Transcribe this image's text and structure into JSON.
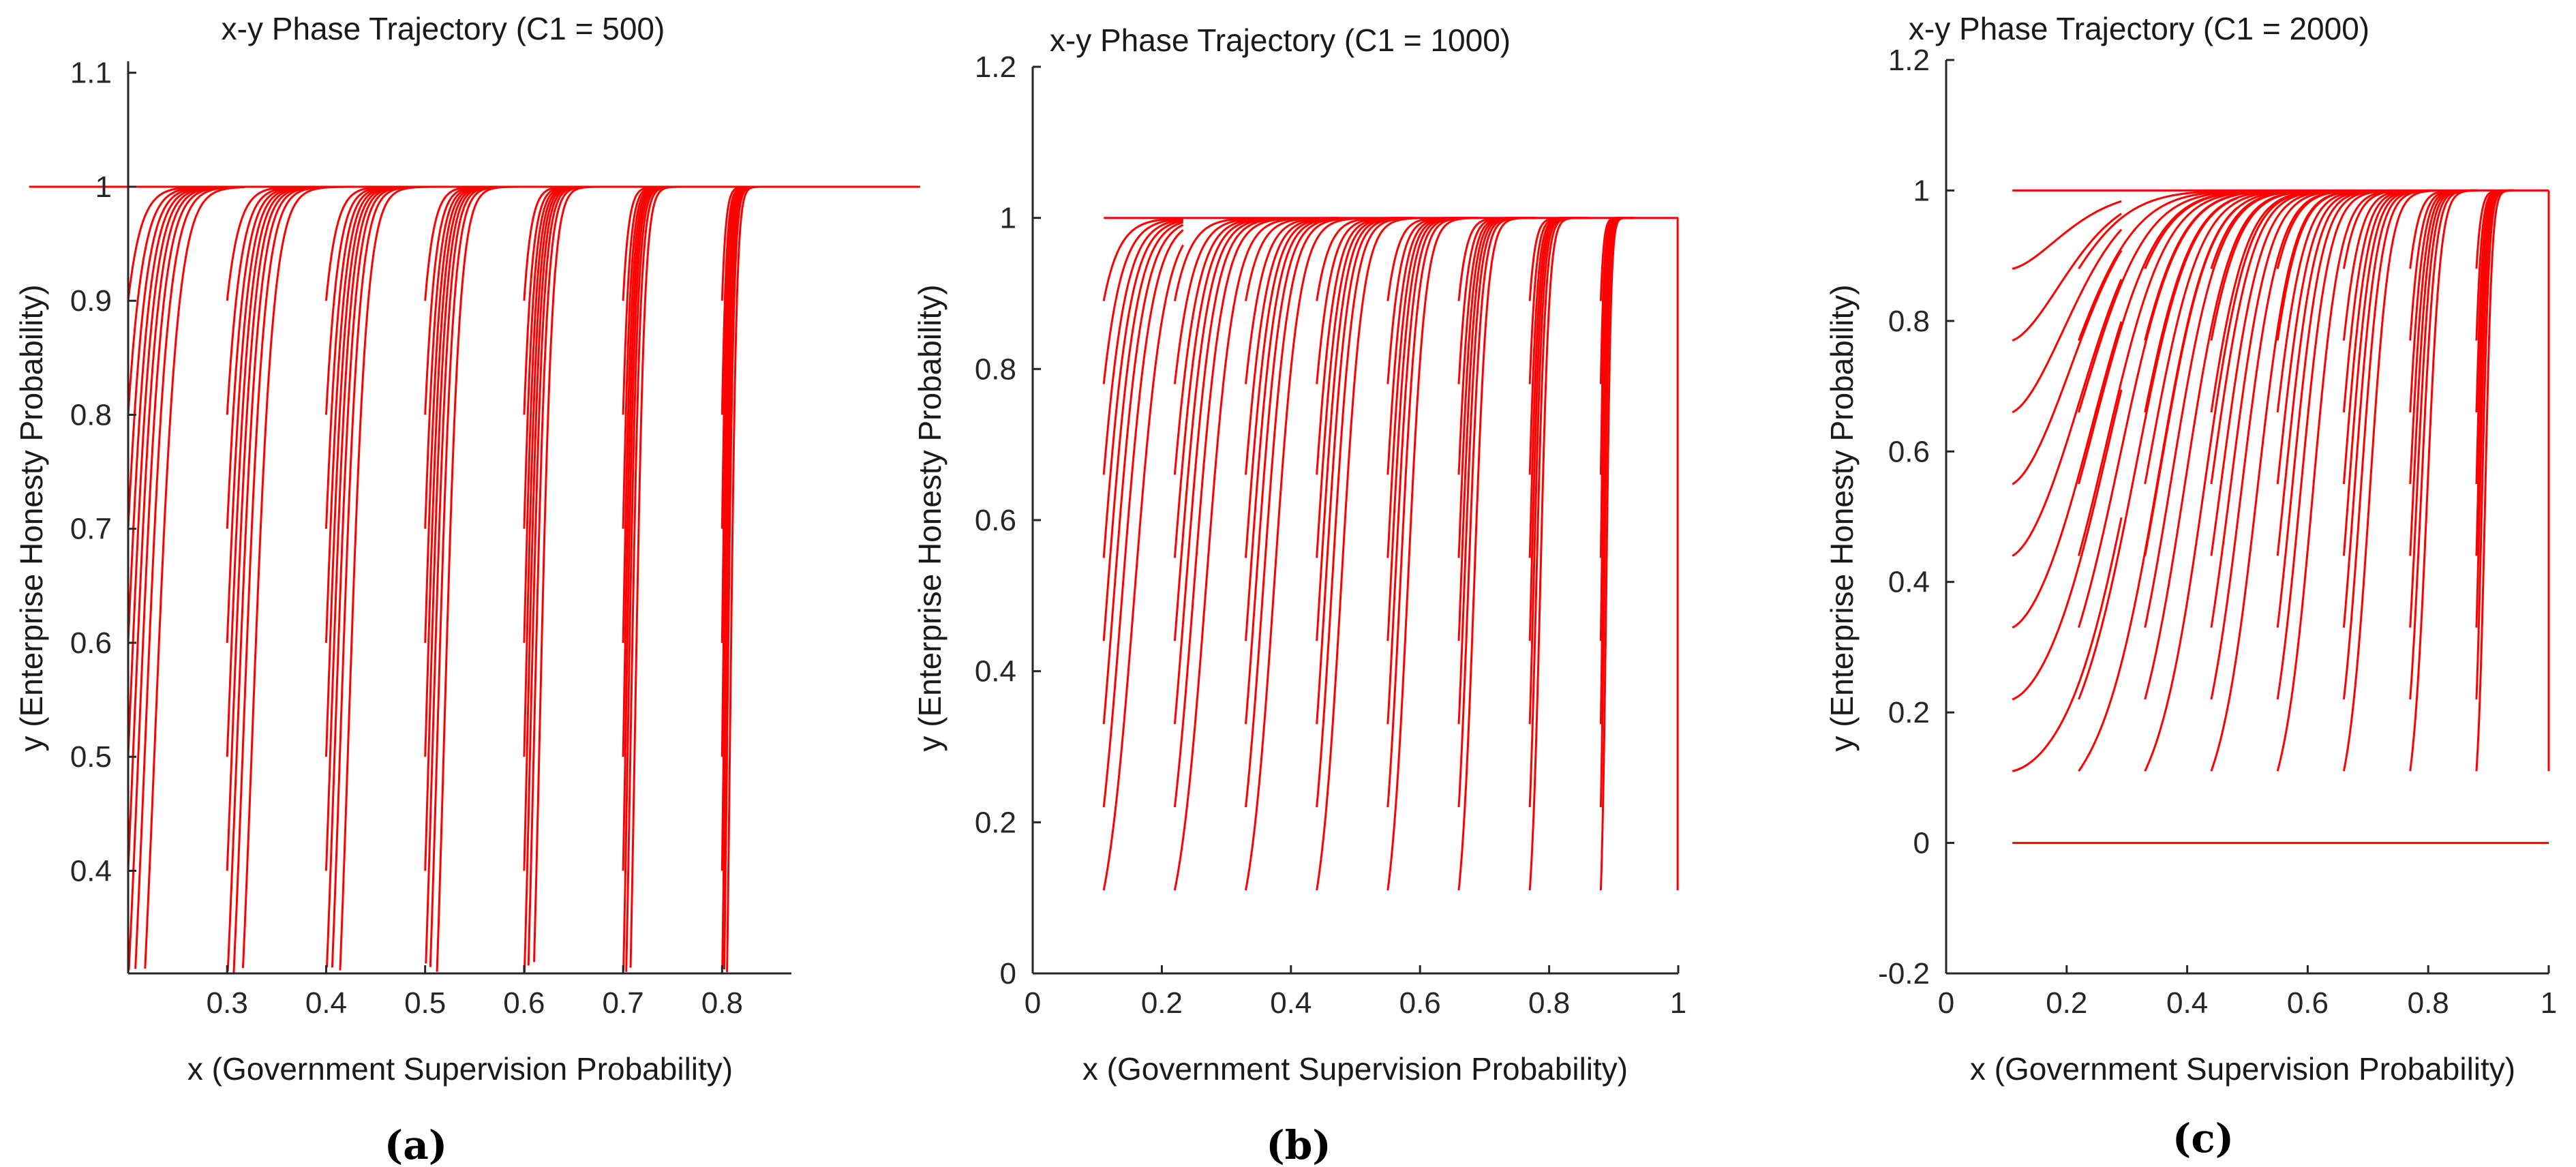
{
  "figure": {
    "panels": [
      {
        "id": "a",
        "caption": "(a)",
        "chart_data": {
          "type": "line",
          "title": "x-y Phase Trajectory (C1 = 500)",
          "xlabel": "x (Government Supervision Probability)",
          "ylabel": "y (Enterprise Honesty Probability)",
          "xlim": [
            0.2,
            0.87
          ],
          "ylim": [
            0.31,
            1.11
          ],
          "xticks": [
            0.3,
            0.4,
            0.5,
            0.6,
            0.7,
            0.8
          ],
          "xticklabels": [
            "0.3",
            "0.4",
            "0.5",
            "0.6",
            "0.7",
            "0.8"
          ],
          "yticks": [
            0.4,
            0.5,
            0.6,
            0.7,
            0.8,
            0.9,
            1.0,
            1.1
          ],
          "yticklabels": [
            "0.4",
            "0.5",
            "0.6",
            "0.7",
            "0.8",
            "0.9",
            "1",
            "1.1"
          ],
          "series_color": "#ff0000",
          "trajectory_family": {
            "x_starts": [
              0.1,
              0.2,
              0.3,
              0.4,
              0.5,
              0.6,
              0.7,
              0.8,
              0.9
            ],
            "y_starts": [
              0.1,
              0.2,
              0.3,
              0.4,
              0.5,
              0.6,
              0.7,
              0.8,
              0.9
            ],
            "k": 3.2,
            "q": 2.5,
            "ystable": 1.0
          }
        }
      },
      {
        "id": "b",
        "caption": "(b)",
        "chart_data": {
          "type": "line",
          "title": "x-y Phase Trajectory (C1 = 1000)",
          "xlabel": "x (Government Supervision Probability)",
          "ylabel": "y (Enterprise Honesty Probability)",
          "xlim": [
            0,
            1
          ],
          "ylim": [
            0,
            1.2
          ],
          "xticks": [
            0,
            0.2,
            0.4,
            0.6,
            0.8,
            1
          ],
          "xticklabels": [
            "0",
            "0.2",
            "0.4",
            "0.6",
            "0.8",
            "1"
          ],
          "yticks": [
            0,
            0.2,
            0.4,
            0.6,
            0.8,
            1.0,
            1.2
          ],
          "yticklabels": [
            "0",
            "0.2",
            "0.4",
            "0.6",
            "0.8",
            "1",
            "1.2"
          ],
          "series_color": "#ff0000",
          "trajectory_family": {
            "x_starts": [
              0.11,
              0.22,
              0.33,
              0.44,
              0.55,
              0.66,
              0.77,
              0.88
            ],
            "y_starts": [
              0.11,
              0.22,
              0.33,
              0.44,
              0.55,
              0.66,
              0.78,
              0.89
            ],
            "k": 2.6,
            "q": 1.6,
            "ystable": 1.0
          }
        }
      },
      {
        "id": "c",
        "caption": "(c)",
        "chart_data": {
          "type": "line",
          "title": "x-y Phase Trajectory (C1 = 2000)",
          "xlabel": "x (Government Supervision Probability)",
          "ylabel": "y (Enterprise Honesty Probability)",
          "xlim": [
            0,
            1
          ],
          "ylim": [
            -0.2,
            1.2
          ],
          "xticks": [
            0,
            0.2,
            0.4,
            0.6,
            0.8,
            1
          ],
          "xticklabels": [
            "0",
            "0.2",
            "0.4",
            "0.6",
            "0.8",
            "1"
          ],
          "yticks": [
            -0.2,
            0,
            0.2,
            0.4,
            0.6,
            0.8,
            1.0,
            1.2
          ],
          "yticklabels": [
            "-0.2",
            "0",
            "0.2",
            "0.4",
            "0.6",
            "0.8",
            "1",
            "1.2"
          ],
          "series_color": "#ff0000",
          "trajectory_family": {
            "x_starts": [
              0.11,
              0.22,
              0.33,
              0.44,
              0.55,
              0.66,
              0.77,
              0.88
            ],
            "y_starts": [
              0.11,
              0.22,
              0.33,
              0.44,
              0.55,
              0.66,
              0.77,
              0.88
            ],
            "k": 1.3,
            "q": 3.0,
            "ystable": 1.0,
            "dip": true
          }
        }
      }
    ]
  }
}
